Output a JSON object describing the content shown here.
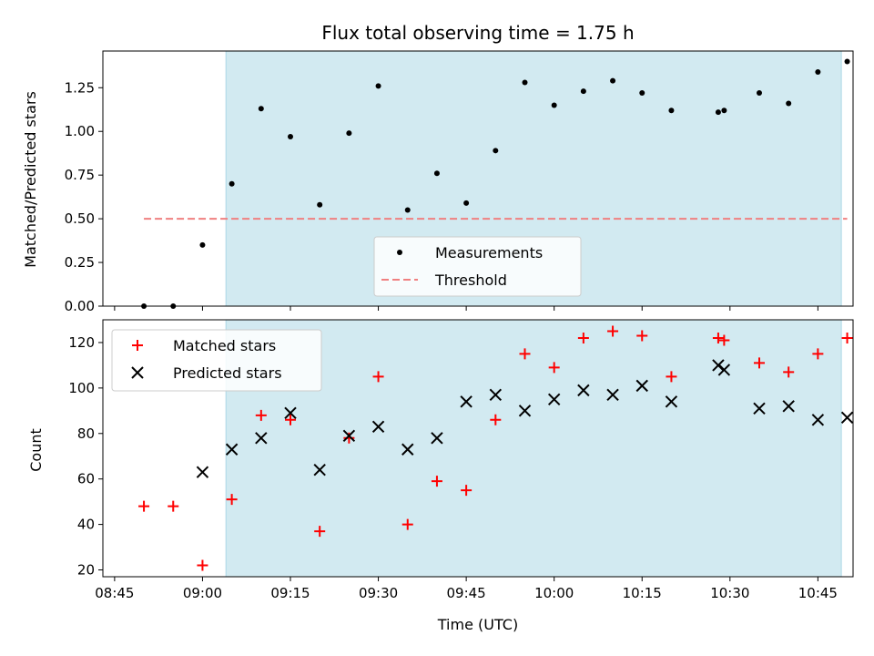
{
  "chart_data": [
    {
      "type": "scatter",
      "title": "Flux total observing time = 1.75 h",
      "ylabel": "Matched/Predicted stars",
      "xlabel": "",
      "x_unit": "time (UTC)",
      "xlim": [
        "08:43",
        "10:51"
      ],
      "ylim": [
        0,
        1.46
      ],
      "yticks": [
        "0.00",
        "0.25",
        "0.50",
        "0.75",
        "1.00",
        "1.25"
      ],
      "shaded_interval": {
        "start": "09:04",
        "end": "10:49",
        "color": "#add8e6"
      },
      "legend_placement": "lower center",
      "series": [
        {
          "name": "Measurements",
          "marker": "dot",
          "color": "#000000",
          "points": [
            [
              "08:50",
              0.0
            ],
            [
              "08:55",
              0.0
            ],
            [
              "09:00",
              0.35
            ],
            [
              "09:05",
              0.7
            ],
            [
              "09:10",
              1.13
            ],
            [
              "09:15",
              0.97
            ],
            [
              "09:20",
              0.58
            ],
            [
              "09:25",
              0.99
            ],
            [
              "09:30",
              1.26
            ],
            [
              "09:35",
              0.55
            ],
            [
              "09:40",
              0.76
            ],
            [
              "09:45",
              0.59
            ],
            [
              "09:50",
              0.89
            ],
            [
              "09:55",
              1.28
            ],
            [
              "10:00",
              1.15
            ],
            [
              "10:05",
              1.23
            ],
            [
              "10:10",
              1.29
            ],
            [
              "10:15",
              1.22
            ],
            [
              "10:20",
              1.12
            ],
            [
              "10:28",
              1.11
            ],
            [
              "10:29",
              1.12
            ],
            [
              "10:35",
              1.22
            ],
            [
              "10:40",
              1.16
            ],
            [
              "10:45",
              1.34
            ],
            [
              "10:50",
              1.4
            ]
          ]
        },
        {
          "name": "Threshold",
          "marker": "dashed-line",
          "color": "#f08080",
          "points": [
            [
              "08:50",
              0.5
            ],
            [
              "10:50",
              0.5
            ]
          ]
        }
      ]
    },
    {
      "type": "scatter",
      "title": "",
      "ylabel": "Count",
      "xlabel": "Time (UTC)",
      "xlim": [
        "08:43",
        "10:51"
      ],
      "ylim": [
        17,
        130
      ],
      "yticks": [
        "20",
        "40",
        "60",
        "80",
        "100",
        "120"
      ],
      "xticks": [
        "08:45",
        "09:00",
        "09:15",
        "09:30",
        "09:45",
        "10:00",
        "10:15",
        "10:30",
        "10:45"
      ],
      "shaded_interval": {
        "start": "09:04",
        "end": "10:49",
        "color": "#add8e6"
      },
      "legend_placement": "upper left",
      "series": [
        {
          "name": "Matched stars",
          "marker": "plus",
          "color": "#ff0000",
          "points": [
            [
              "08:50",
              48
            ],
            [
              "08:55",
              48
            ],
            [
              "09:00",
              22
            ],
            [
              "09:05",
              51
            ],
            [
              "09:10",
              88
            ],
            [
              "09:15",
              86
            ],
            [
              "09:20",
              37
            ],
            [
              "09:25",
              78
            ],
            [
              "09:30",
              105
            ],
            [
              "09:35",
              40
            ],
            [
              "09:40",
              59
            ],
            [
              "09:45",
              55
            ],
            [
              "09:50",
              86
            ],
            [
              "09:55",
              115
            ],
            [
              "10:00",
              109
            ],
            [
              "10:05",
              122
            ],
            [
              "10:10",
              125
            ],
            [
              "10:15",
              123
            ],
            [
              "10:20",
              105
            ],
            [
              "10:28",
              122
            ],
            [
              "10:29",
              121
            ],
            [
              "10:35",
              111
            ],
            [
              "10:40",
              107
            ],
            [
              "10:45",
              115
            ],
            [
              "10:50",
              122
            ]
          ]
        },
        {
          "name": "Predicted stars",
          "marker": "x",
          "color": "#000000",
          "points": [
            [
              "09:00",
              63
            ],
            [
              "09:05",
              73
            ],
            [
              "09:10",
              78
            ],
            [
              "09:15",
              89
            ],
            [
              "09:20",
              64
            ],
            [
              "09:25",
              79
            ],
            [
              "09:30",
              83
            ],
            [
              "09:35",
              73
            ],
            [
              "09:40",
              78
            ],
            [
              "09:45",
              94
            ],
            [
              "09:50",
              97
            ],
            [
              "09:55",
              90
            ],
            [
              "10:00",
              95
            ],
            [
              "10:05",
              99
            ],
            [
              "10:10",
              97
            ],
            [
              "10:15",
              101
            ],
            [
              "10:20",
              94
            ],
            [
              "10:28",
              110
            ],
            [
              "10:29",
              108
            ],
            [
              "10:35",
              91
            ],
            [
              "10:40",
              92
            ],
            [
              "10:45",
              86
            ],
            [
              "10:50",
              87
            ]
          ]
        }
      ]
    }
  ]
}
